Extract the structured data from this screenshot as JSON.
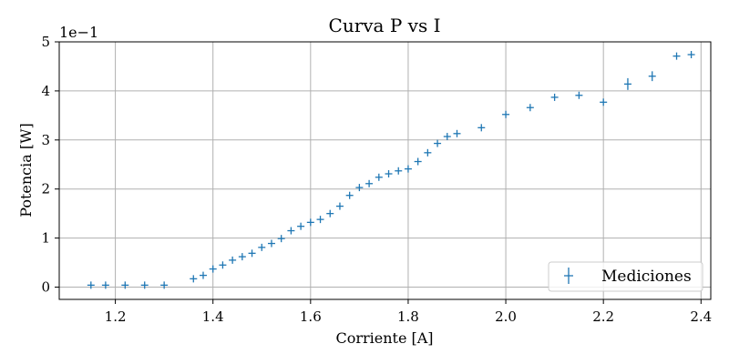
{
  "chart_data": {
    "type": "scatter",
    "title": "Curva P vs I",
    "xlabel": "Corriente [A]",
    "ylabel": "Potencia [W]",
    "y_scale_label": "1e−1",
    "xlim": [
      1.085,
      2.42
    ],
    "ylim": [
      -0.025,
      0.5
    ],
    "x_ticks": [
      1.2,
      1.4,
      1.6,
      1.8,
      2.0,
      2.2,
      2.4
    ],
    "x_tick_labels": [
      "1.2",
      "1.4",
      "1.6",
      "1.8",
      "2.0",
      "2.2",
      "2.4"
    ],
    "y_ticks": [
      0,
      0.1,
      0.2,
      0.3,
      0.4,
      0.5
    ],
    "y_tick_labels": [
      "0",
      "1",
      "2",
      "3",
      "4",
      "5"
    ],
    "grid": true,
    "legend_position": "lower-right",
    "series": [
      {
        "name": "Mediciones",
        "color": "#1f77b4",
        "marker": "errorbar-plus",
        "x": [
          1.15,
          1.18,
          1.22,
          1.26,
          1.3,
          1.36,
          1.38,
          1.4,
          1.42,
          1.44,
          1.46,
          1.48,
          1.5,
          1.52,
          1.54,
          1.56,
          1.58,
          1.6,
          1.62,
          1.64,
          1.66,
          1.68,
          1.7,
          1.72,
          1.74,
          1.76,
          1.78,
          1.8,
          1.82,
          1.84,
          1.86,
          1.88,
          1.9,
          1.95,
          2.0,
          2.05,
          2.1,
          2.15,
          2.2,
          2.25,
          2.3,
          2.35,
          2.38
        ],
        "y": [
          0.004,
          0.004,
          0.004,
          0.004,
          0.004,
          0.017,
          0.024,
          0.037,
          0.045,
          0.055,
          0.062,
          0.069,
          0.081,
          0.089,
          0.099,
          0.115,
          0.124,
          0.132,
          0.138,
          0.15,
          0.165,
          0.187,
          0.203,
          0.211,
          0.224,
          0.231,
          0.237,
          0.241,
          0.256,
          0.274,
          0.293,
          0.307,
          0.313,
          0.325,
          0.352,
          0.366,
          0.387,
          0.391,
          0.377,
          0.414,
          0.43,
          0.471,
          0.474
        ],
        "yerr": [
          0.002,
          0.002,
          0.002,
          0.002,
          0.002,
          0.004,
          0.004,
          0.004,
          0.004,
          0.004,
          0.004,
          0.004,
          0.004,
          0.004,
          0.004,
          0.004,
          0.004,
          0.004,
          0.004,
          0.004,
          0.004,
          0.004,
          0.004,
          0.004,
          0.004,
          0.004,
          0.004,
          0.004,
          0.004,
          0.004,
          0.004,
          0.004,
          0.004,
          0.004,
          0.004,
          0.004,
          0.004,
          0.004,
          0.004,
          0.012,
          0.01,
          0.006,
          0.006
        ]
      }
    ]
  }
}
